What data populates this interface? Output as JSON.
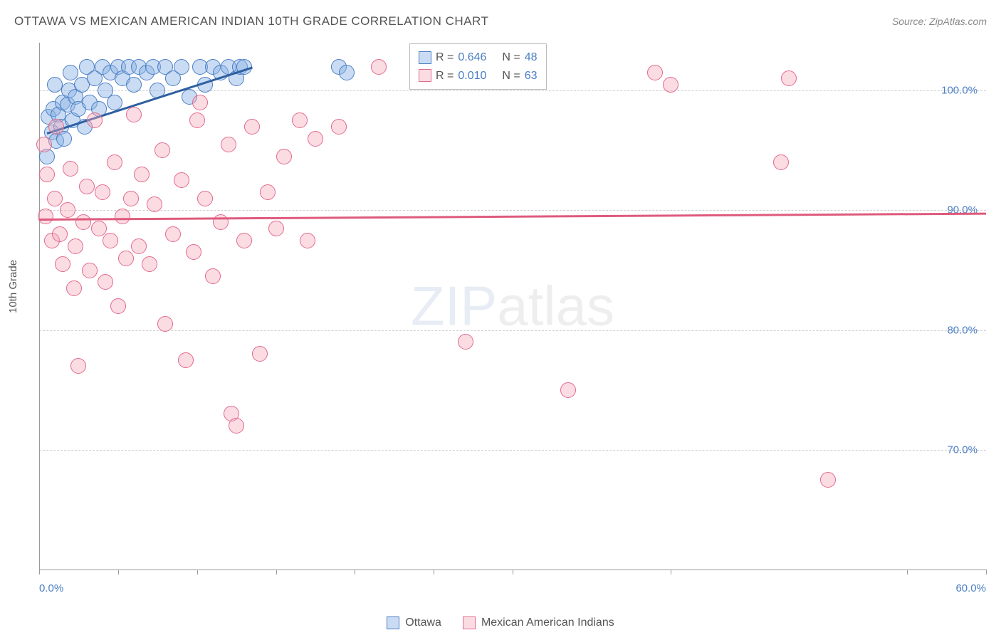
{
  "header": {
    "title": "OTTAWA VS MEXICAN AMERICAN INDIAN 10TH GRADE CORRELATION CHART",
    "source": "Source: ZipAtlas.com"
  },
  "chart": {
    "type": "scatter",
    "ylabel": "10th Grade",
    "xlim": [
      0,
      60
    ],
    "ylim": [
      60,
      104
    ],
    "ytick_values": [
      70,
      80,
      90,
      100
    ],
    "ytick_labels": [
      "70.0%",
      "80.0%",
      "90.0%",
      "100.0%"
    ],
    "xtick_values": [
      0,
      5,
      10,
      15,
      20,
      25,
      30,
      40,
      55,
      60
    ],
    "xaxis_start_label": "0.0%",
    "xaxis_end_label": "60.0%",
    "background_color": "#ffffff",
    "grid_color": "#d0d0d0",
    "axis_color": "#999999",
    "marker_radius": 11,
    "marker_border_width": 1.5,
    "series": [
      {
        "name": "Ottawa",
        "fill_color": "rgba(137,177,229,0.45)",
        "stroke_color": "#4a7ec4",
        "trend_color": "#2e5fa0",
        "R": "0.646",
        "N": "48",
        "trend": {
          "x1": 0.5,
          "y1": 96.5,
          "x2": 13.5,
          "y2": 102.0
        },
        "points": [
          {
            "x": 0.5,
            "y": 94.5
          },
          {
            "x": 0.6,
            "y": 97.8
          },
          {
            "x": 0.8,
            "y": 96.5
          },
          {
            "x": 0.9,
            "y": 98.5
          },
          {
            "x": 1.0,
            "y": 100.5
          },
          {
            "x": 1.1,
            "y": 95.8
          },
          {
            "x": 1.2,
            "y": 98.0
          },
          {
            "x": 1.4,
            "y": 97.0
          },
          {
            "x": 1.5,
            "y": 99.0
          },
          {
            "x": 1.6,
            "y": 96.0
          },
          {
            "x": 1.8,
            "y": 98.8
          },
          {
            "x": 1.9,
            "y": 100.0
          },
          {
            "x": 2.0,
            "y": 101.5
          },
          {
            "x": 2.1,
            "y": 97.5
          },
          {
            "x": 2.3,
            "y": 99.5
          },
          {
            "x": 2.5,
            "y": 98.5
          },
          {
            "x": 2.7,
            "y": 100.5
          },
          {
            "x": 2.9,
            "y": 97.0
          },
          {
            "x": 3.0,
            "y": 102.0
          },
          {
            "x": 3.2,
            "y": 99.0
          },
          {
            "x": 3.5,
            "y": 101.0
          },
          {
            "x": 3.8,
            "y": 98.5
          },
          {
            "x": 4.0,
            "y": 102.0
          },
          {
            "x": 4.2,
            "y": 100.0
          },
          {
            "x": 4.5,
            "y": 101.5
          },
          {
            "x": 4.8,
            "y": 99.0
          },
          {
            "x": 5.0,
            "y": 102.0
          },
          {
            "x": 5.3,
            "y": 101.0
          },
          {
            "x": 5.7,
            "y": 102.0
          },
          {
            "x": 6.0,
            "y": 100.5
          },
          {
            "x": 6.3,
            "y": 102.0
          },
          {
            "x": 6.8,
            "y": 101.5
          },
          {
            "x": 7.2,
            "y": 102.0
          },
          {
            "x": 7.5,
            "y": 100.0
          },
          {
            "x": 8.0,
            "y": 102.0
          },
          {
            "x": 8.5,
            "y": 101.0
          },
          {
            "x": 9.0,
            "y": 102.0
          },
          {
            "x": 9.5,
            "y": 99.5
          },
          {
            "x": 10.2,
            "y": 102.0
          },
          {
            "x": 10.5,
            "y": 100.5
          },
          {
            "x": 11.0,
            "y": 102.0
          },
          {
            "x": 11.5,
            "y": 101.5
          },
          {
            "x": 12.0,
            "y": 102.0
          },
          {
            "x": 12.5,
            "y": 101.0
          },
          {
            "x": 12.7,
            "y": 102.0
          },
          {
            "x": 13.0,
            "y": 102.0
          },
          {
            "x": 19.0,
            "y": 102.0
          },
          {
            "x": 19.5,
            "y": 101.5
          }
        ]
      },
      {
        "name": "Mexican American Indians",
        "fill_color": "rgba(244,167,185,0.40)",
        "stroke_color": "#e26a8d",
        "trend_color": "#de5a7d",
        "R": "0.010",
        "N": "63",
        "trend": {
          "x1": 0.0,
          "y1": 89.3,
          "x2": 60.0,
          "y2": 89.8
        },
        "points": [
          {
            "x": 0.3,
            "y": 95.5
          },
          {
            "x": 0.4,
            "y": 89.5
          },
          {
            "x": 0.5,
            "y": 93.0
          },
          {
            "x": 0.8,
            "y": 87.5
          },
          {
            "x": 1.0,
            "y": 91.0
          },
          {
            "x": 1.1,
            "y": 97.0
          },
          {
            "x": 1.3,
            "y": 88.0
          },
          {
            "x": 1.5,
            "y": 85.5
          },
          {
            "x": 1.8,
            "y": 90.0
          },
          {
            "x": 2.0,
            "y": 93.5
          },
          {
            "x": 2.2,
            "y": 83.5
          },
          {
            "x": 2.3,
            "y": 87.0
          },
          {
            "x": 2.5,
            "y": 77.0
          },
          {
            "x": 2.8,
            "y": 89.0
          },
          {
            "x": 3.0,
            "y": 92.0
          },
          {
            "x": 3.2,
            "y": 85.0
          },
          {
            "x": 3.5,
            "y": 97.5
          },
          {
            "x": 3.8,
            "y": 88.5
          },
          {
            "x": 4.0,
            "y": 91.5
          },
          {
            "x": 4.2,
            "y": 84.0
          },
          {
            "x": 4.5,
            "y": 87.5
          },
          {
            "x": 4.8,
            "y": 94.0
          },
          {
            "x": 5.0,
            "y": 82.0
          },
          {
            "x": 5.3,
            "y": 89.5
          },
          {
            "x": 5.5,
            "y": 86.0
          },
          {
            "x": 5.8,
            "y": 91.0
          },
          {
            "x": 6.0,
            "y": 98.0
          },
          {
            "x": 6.3,
            "y": 87.0
          },
          {
            "x": 6.5,
            "y": 93.0
          },
          {
            "x": 7.0,
            "y": 85.5
          },
          {
            "x": 7.3,
            "y": 90.5
          },
          {
            "x": 7.8,
            "y": 95.0
          },
          {
            "x": 8.0,
            "y": 80.5
          },
          {
            "x": 8.5,
            "y": 88.0
          },
          {
            "x": 9.0,
            "y": 92.5
          },
          {
            "x": 9.3,
            "y": 77.5
          },
          {
            "x": 9.8,
            "y": 86.5
          },
          {
            "x": 10.0,
            "y": 97.5
          },
          {
            "x": 10.2,
            "y": 99.0
          },
          {
            "x": 10.5,
            "y": 91.0
          },
          {
            "x": 11.0,
            "y": 84.5
          },
          {
            "x": 11.5,
            "y": 89.0
          },
          {
            "x": 12.0,
            "y": 95.5
          },
          {
            "x": 12.2,
            "y": 73.0
          },
          {
            "x": 12.5,
            "y": 72.0
          },
          {
            "x": 13.0,
            "y": 87.5
          },
          {
            "x": 13.5,
            "y": 97.0
          },
          {
            "x": 14.0,
            "y": 78.0
          },
          {
            "x": 14.5,
            "y": 91.5
          },
          {
            "x": 15.0,
            "y": 88.5
          },
          {
            "x": 15.5,
            "y": 94.5
          },
          {
            "x": 16.5,
            "y": 97.5
          },
          {
            "x": 17.0,
            "y": 87.5
          },
          {
            "x": 17.5,
            "y": 96.0
          },
          {
            "x": 19.0,
            "y": 97.0
          },
          {
            "x": 21.5,
            "y": 102.0
          },
          {
            "x": 27.0,
            "y": 79.0
          },
          {
            "x": 33.5,
            "y": 75.0
          },
          {
            "x": 39.0,
            "y": 101.5
          },
          {
            "x": 40.0,
            "y": 100.5
          },
          {
            "x": 47.0,
            "y": 94.0
          },
          {
            "x": 47.5,
            "y": 101.0
          },
          {
            "x": 50.0,
            "y": 67.5
          }
        ]
      }
    ],
    "legend_top": {
      "r_label": "R =",
      "n_label": "N ="
    },
    "watermark": {
      "bold": "ZIP",
      "light": "atlas"
    }
  }
}
